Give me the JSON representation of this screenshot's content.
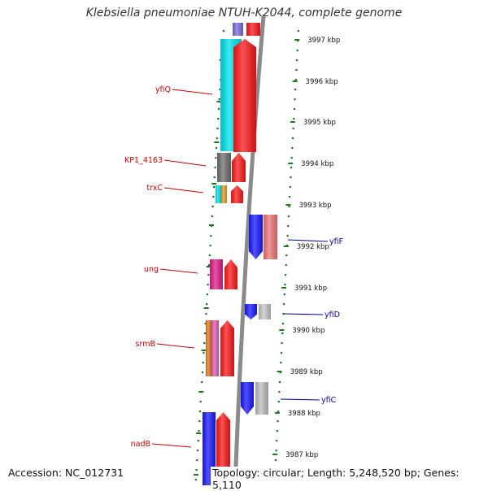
{
  "title": "Klebsiella pneumoniae NTUH-K2044, complete genome",
  "footer": {
    "accession": "Accession: NC_012731",
    "summary": "Topology: circular; Length: 5,248,520 bp; Genes: 5,110"
  },
  "colors": {
    "backbone": "#8a8a8a",
    "ruler": "#1a7a1a",
    "left_label": "#cc0000",
    "right_label": "#000099"
  },
  "scale": {
    "ticks": [
      "3997 kbp",
      "3996 kbp",
      "3995 kbp",
      "3994 kbp",
      "3993 kbp",
      "3992 kbp",
      "3991 kbp",
      "3990 kbp",
      "3989 kbp",
      "3988 kbp",
      "3987 kbp"
    ]
  },
  "labels": {
    "left": [
      "yfiQ",
      "KP1_4163",
      "trxC",
      "ung",
      "srmB",
      "nadB"
    ],
    "right": [
      "yfiF",
      "yfiD",
      "yfiC"
    ]
  },
  "features": [
    {
      "name": "top-partial",
      "colors": [
        "#7b6fd8",
        "#ff1a1a"
      ]
    },
    {
      "name": "yfiQ",
      "colors": [
        "#00e5ee",
        "#ff1a1a"
      ]
    },
    {
      "name": "KP1_4163",
      "colors": [
        "#707070",
        "#ff1a1a"
      ]
    },
    {
      "name": "trxC",
      "colors": [
        "#00e5ee",
        "#e8a020",
        "#ff1a1a"
      ]
    },
    {
      "name": "yfiF",
      "colors": [
        "#1a1aff",
        "#f07878"
      ]
    },
    {
      "name": "ung",
      "colors": [
        "#e0208a",
        "#ff1a1a"
      ]
    },
    {
      "name": "yfiD",
      "colors": [
        "#1a1aff",
        "#c8c8c8"
      ]
    },
    {
      "name": "srmB",
      "colors": [
        "#e87820",
        "#e060b0",
        "#ff1a1a"
      ]
    },
    {
      "name": "yfiC",
      "colors": [
        "#1a1aff",
        "#c0c0c0"
      ]
    },
    {
      "name": "nadB",
      "colors": [
        "#1a1aff",
        "#ff1a1a"
      ]
    }
  ]
}
